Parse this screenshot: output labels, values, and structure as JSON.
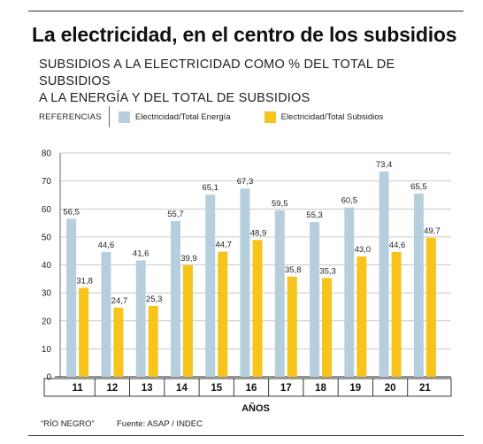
{
  "header": {
    "title": "La electricidad, en el centro de los subsidios",
    "subtitle_line1": "SUBSIDIOS A LA ELECTRICIDAD COMO % DEL TOTAL DE SUBSIDIOS",
    "subtitle_line2": "A LA ENERGÍA Y DEL TOTAL DE SUBSIDIOS"
  },
  "legend": {
    "title": "REFERENCIAS",
    "items": [
      {
        "label": "Electricidad/Total Energía",
        "color": "#b7cfdd"
      },
      {
        "label": "Electricidad/Total Subsidios",
        "color": "#f7c41b"
      }
    ]
  },
  "chart_data": {
    "type": "bar",
    "categories": [
      "11",
      "12",
      "13",
      "14",
      "15",
      "16",
      "17",
      "18",
      "19",
      "20",
      "21"
    ],
    "series": [
      {
        "name": "Electricidad/Total Energía",
        "color": "#b7cfdd",
        "values": [
          56.5,
          44.6,
          41.6,
          55.7,
          65.1,
          67.3,
          59.5,
          55.3,
          60.5,
          73.4,
          65.5
        ],
        "labels": [
          "56,5",
          "44,6",
          "41,6",
          "55,7",
          "65,1",
          "67,3",
          "59,5",
          "55,3",
          "60,5",
          "73,4",
          "65,5"
        ]
      },
      {
        "name": "Electricidad/Total Subsidios",
        "color": "#f7c41b",
        "values": [
          31.8,
          24.7,
          25.3,
          39.9,
          44.7,
          48.9,
          35.8,
          35.3,
          43.0,
          44.6,
          49.7
        ],
        "labels": [
          "31,8",
          "24,7",
          "25,3",
          "39,9",
          "44,7",
          "48,9",
          "35,8",
          "35,3",
          "43,0",
          "44,6",
          "49,7"
        ]
      }
    ],
    "xlabel": "AÑOS",
    "ylabel": "",
    "ylim": [
      0,
      80
    ],
    "yticks": [
      "0",
      "10",
      "20",
      "30",
      "40",
      "50",
      "60",
      "70",
      "80"
    ],
    "grid": true
  },
  "footer": {
    "source_label": "“RÍO NEGRO”",
    "fuente": "Fuente: ASAP / INDEC"
  }
}
